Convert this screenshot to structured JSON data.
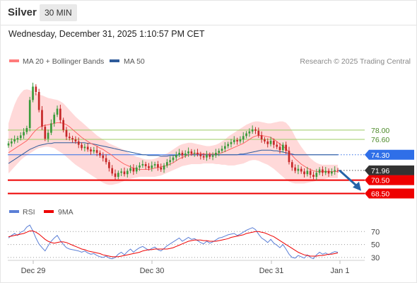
{
  "header": {
    "title": "Silver",
    "timeframe": "30 MIN",
    "datetime": "Wednesday, December 31, 2025 1:10:57 PM CET"
  },
  "credit": "Research © 2025 Trading Central",
  "colors": {
    "ma20": "#ff5a5a",
    "bollinger": "#ffcccc",
    "ma50": "#2e5b9a",
    "resistance": "#9ccc65",
    "pivot": "#2f6fe8",
    "support": "#ee0000",
    "last": "#333333",
    "up": "#3a9a3a",
    "down": "#c62828",
    "arrow": "#2563a8",
    "rsi": "#5b7fd6",
    "rsi_ma": "#ee0000"
  },
  "chart_data": [
    {
      "type": "candlestick",
      "legend": [
        {
          "name": "MA 20 + Bollinger Bands",
          "color": "#ff7b7b"
        },
        {
          "name": "MA 50",
          "color": "#2e5b9a"
        }
      ],
      "x_ticks": [
        "Dec 29",
        "Dec 30",
        "Dec 31",
        "Jan 1"
      ],
      "ylim": [
        67.5,
        87.3
      ],
      "levels": [
        {
          "label": "78.00",
          "value": 78.0,
          "kind": "resistance"
        },
        {
          "label": "76.60",
          "value": 76.6,
          "kind": "resistance"
        },
        {
          "label": "74.30",
          "value": 74.3,
          "kind": "pivot"
        },
        {
          "label": "71.96",
          "value": 71.96,
          "kind": "last"
        },
        {
          "label": "70.50",
          "value": 70.5,
          "kind": "support"
        },
        {
          "label": "68.50",
          "value": 68.5,
          "kind": "support"
        }
      ],
      "forecast_arrow": {
        "from": 71.9,
        "to": 68.9
      },
      "close": [
        76.0,
        76.3,
        76.6,
        76.8,
        77.2,
        77.7,
        78.3,
        82.5,
        84.5,
        83.7,
        81.0,
        78.5,
        76.7,
        77.6,
        79.0,
        80.3,
        81.2,
        79.5,
        78.0,
        77.0,
        76.8,
        76.6,
        76.3,
        75.8,
        75.3,
        75.5,
        75.1,
        74.8,
        75.0,
        74.6,
        74.2,
        73.8,
        73.2,
        72.3,
        71.5,
        71.0,
        71.6,
        71.8,
        71.4,
        71.9,
        72.3,
        71.8,
        72.4,
        72.7,
        72.9,
        72.6,
        72.3,
        72.7,
        72.9,
        72.4,
        72.1,
        72.7,
        73.2,
        73.5,
        73.9,
        74.3,
        74.6,
        74.2,
        74.5,
        74.8,
        74.5,
        74.6,
        74.4,
        74.1,
        73.9,
        74.3,
        74.0,
        74.2,
        74.6,
        74.9,
        75.2,
        75.6,
        75.9,
        76.2,
        76.5,
        76.3,
        76.6,
        77.1,
        77.5,
        77.8,
        78.1,
        77.9,
        77.2,
        76.6,
        76.3,
        75.9,
        76.4,
        75.8,
        75.5,
        75.0,
        75.8,
        74.9,
        73.2,
        72.4,
        71.9,
        72.2,
        71.8,
        71.4,
        71.9,
        71.3,
        71.0,
        71.6,
        72.1,
        71.6,
        71.9,
        71.5,
        71.8,
        72.0,
        71.96
      ],
      "ma20": [
        74.6,
        74.9,
        75.2,
        75.5,
        75.8,
        76.1,
        76.4,
        76.9,
        77.5,
        78.0,
        78.4,
        78.6,
        78.7,
        78.8,
        78.9,
        79.0,
        79.1,
        79.1,
        79.0,
        78.8,
        78.5,
        78.1,
        77.7,
        77.3,
        76.9,
        76.6,
        76.3,
        76.0,
        75.8,
        75.6,
        75.3,
        75.1,
        74.8,
        74.5,
        74.2,
        73.8,
        73.5,
        73.2,
        72.9,
        72.7,
        72.5,
        72.3,
        72.2,
        72.1,
        72.1,
        72.1,
        72.1,
        72.2,
        72.3,
        72.4,
        72.5,
        72.6,
        72.7,
        72.9,
        73.1,
        73.4,
        73.7,
        73.9,
        74.1,
        74.3,
        74.4,
        74.5,
        74.5,
        74.5,
        74.4,
        74.4,
        74.4,
        74.4,
        74.4,
        74.5,
        74.6,
        74.8,
        75.0,
        75.2,
        75.4,
        75.6,
        75.8,
        76.0,
        76.3,
        76.6,
        76.9,
        77.1,
        77.2,
        77.2,
        77.1,
        77.0,
        76.9,
        76.6,
        76.3,
        75.9,
        75.6,
        75.2,
        74.7,
        74.2,
        73.7,
        73.3,
        72.9,
        72.6,
        72.3,
        72.1,
        71.9,
        71.8,
        71.8,
        71.8,
        71.8,
        71.8,
        71.8,
        71.8,
        71.8
      ],
      "bb_upper": [
        79.0,
        80.5,
        81.8,
        82.8,
        83.5,
        84.0,
        84.1,
        84.0,
        83.8,
        83.5,
        83.3,
        83.2,
        83.0,
        82.8,
        82.7,
        82.6,
        82.5,
        82.3,
        82.0,
        81.5,
        81.0,
        80.5,
        80.0,
        79.6,
        79.2,
        78.8,
        78.4,
        78.0,
        77.6,
        77.2,
        76.9,
        76.6,
        76.3,
        76.0,
        75.8,
        75.6,
        75.4,
        75.2,
        75.0,
        74.7,
        74.4,
        74.2,
        74.0,
        73.9,
        73.7,
        73.6,
        73.6,
        73.6,
        73.7,
        73.9,
        74.1,
        74.3,
        74.5,
        74.8,
        75.1,
        75.4,
        75.7,
        75.9,
        76.0,
        76.1,
        76.1,
        76.0,
        75.9,
        75.8,
        75.7,
        75.6,
        75.6,
        75.7,
        75.8,
        76.0,
        76.3,
        76.6,
        77.0,
        77.3,
        77.6,
        77.9,
        78.2,
        78.5,
        78.8,
        79.0,
        79.2,
        79.3,
        79.3,
        79.2,
        79.1,
        79.0,
        79.0,
        79.1,
        79.2,
        79.3,
        79.3,
        79.1,
        78.6,
        77.9,
        77.0,
        76.2,
        75.5,
        74.9,
        74.3,
        73.8,
        73.4,
        73.1,
        72.9,
        72.8,
        72.8,
        72.8,
        72.8,
        72.8,
        72.8
      ],
      "bb_lower": [
        71.5,
        72.0,
        72.5,
        73.0,
        73.5,
        73.9,
        74.2,
        74.5,
        74.8,
        75.1,
        75.3,
        75.4,
        75.5,
        75.5,
        75.4,
        75.3,
        75.0,
        74.7,
        74.4,
        74.0,
        73.6,
        73.2,
        72.8,
        72.5,
        72.2,
        71.9,
        71.6,
        71.3,
        71.0,
        70.7,
        70.4,
        70.1,
        69.9,
        69.8,
        69.8,
        69.9,
        70.0,
        70.2,
        70.4,
        70.6,
        70.7,
        70.8,
        70.9,
        71.0,
        71.0,
        71.0,
        71.0,
        71.0,
        71.0,
        71.1,
        71.2,
        71.4,
        71.6,
        71.8,
        72.0,
        72.2,
        72.4,
        72.6,
        72.7,
        72.8,
        72.9,
        72.9,
        72.9,
        72.9,
        73.0,
        73.0,
        73.0,
        73.0,
        72.9,
        72.9,
        72.8,
        72.8,
        72.7,
        72.7,
        72.7,
        72.8,
        72.9,
        73.0,
        73.2,
        73.4,
        73.5,
        73.5,
        73.4,
        73.2,
        73.0,
        72.8,
        72.5,
        72.2,
        71.8,
        71.4,
        71.0,
        70.6,
        70.3,
        70.1,
        70.0,
        70.0,
        70.0,
        70.0,
        70.1,
        70.2,
        70.3,
        70.4,
        70.5,
        70.6,
        70.7,
        70.8,
        70.8,
        70.8,
        70.8
      ],
      "ma50": [
        73.0,
        73.3,
        73.6,
        73.9,
        74.2,
        74.5,
        74.8,
        75.1,
        75.3,
        75.5,
        75.7,
        75.8,
        75.9,
        76.0,
        76.0,
        76.1,
        76.1,
        76.1,
        76.1,
        76.1,
        76.1,
        76.1,
        76.1,
        76.1,
        76.1,
        76.1,
        76.0,
        76.0,
        75.9,
        75.8,
        75.7,
        75.6,
        75.5,
        75.4,
        75.3,
        75.2,
        75.1,
        75.0,
        74.9,
        74.8,
        74.7,
        74.6,
        74.5,
        74.4,
        74.3,
        74.3,
        74.2,
        74.2,
        74.2,
        74.2,
        74.1,
        74.1,
        74.1,
        74.2,
        74.2,
        74.2,
        74.3,
        74.3,
        74.3,
        74.3,
        74.3,
        74.3,
        74.3,
        74.3,
        74.3,
        74.3,
        74.3,
        74.3,
        74.3,
        74.3,
        74.3,
        74.3,
        74.3,
        74.3,
        74.3,
        74.3,
        74.4,
        74.4,
        74.5,
        74.6,
        74.7,
        74.8,
        74.9,
        75.0,
        75.0,
        75.0,
        75.0,
        74.9,
        74.9,
        74.8,
        74.7,
        74.6,
        74.5,
        74.4,
        74.3,
        74.3,
        74.3,
        74.3,
        74.3,
        74.3,
        74.3,
        74.3,
        74.3,
        74.3,
        74.3,
        74.3,
        74.3,
        74.3,
        74.3
      ]
    },
    {
      "type": "line",
      "legend": [
        {
          "name": "RSI",
          "color": "#5b7fd6"
        },
        {
          "name": "9MA",
          "color": "#ee0000"
        }
      ],
      "ylim": [
        20,
        90
      ],
      "y_ticks": [
        70,
        50,
        30
      ],
      "rsi": [
        60,
        64,
        67,
        64,
        69,
        71,
        77,
        80,
        71,
        60,
        51,
        45,
        40,
        48,
        55,
        60,
        64,
        56,
        50,
        45,
        43,
        42,
        41,
        40,
        38,
        40,
        37,
        35,
        36,
        33,
        31,
        30,
        32,
        29,
        28,
        30,
        35,
        38,
        34,
        39,
        43,
        38,
        42,
        45,
        47,
        44,
        41,
        44,
        46,
        42,
        40,
        44,
        48,
        51,
        54,
        57,
        60,
        55,
        58,
        61,
        58,
        59,
        56,
        53,
        51,
        55,
        52,
        54,
        57,
        60,
        61,
        63,
        65,
        66,
        67,
        64,
        66,
        69,
        72,
        74,
        76,
        73,
        66,
        60,
        57,
        53,
        58,
        52,
        49,
        45,
        50,
        43,
        35,
        30,
        29,
        33,
        31,
        29,
        34,
        30,
        28,
        34,
        38,
        35,
        37,
        34,
        37,
        39,
        38
      ],
      "ma9": [
        62,
        63,
        64,
        65,
        66,
        67,
        69,
        71,
        71,
        69,
        66,
        62,
        58,
        55,
        53,
        52,
        53,
        54,
        54,
        53,
        51,
        49,
        47,
        45,
        43,
        42,
        40,
        39,
        38,
        37,
        36,
        34,
        33,
        32,
        31,
        31,
        31,
        32,
        33,
        34,
        35,
        36,
        37,
        38,
        40,
        41,
        42,
        42,
        43,
        43,
        43,
        43,
        43,
        44,
        45,
        47,
        49,
        51,
        53,
        55,
        56,
        57,
        57,
        57,
        56,
        56,
        55,
        55,
        55,
        56,
        57,
        58,
        59,
        61,
        62,
        63,
        64,
        65,
        67,
        68,
        69,
        70,
        70,
        69,
        68,
        66,
        64,
        62,
        59,
        56,
        53,
        50,
        47,
        44,
        41,
        38,
        36,
        34,
        33,
        32,
        32,
        32,
        33,
        33,
        34,
        35,
        35,
        36,
        37
      ]
    }
  ]
}
